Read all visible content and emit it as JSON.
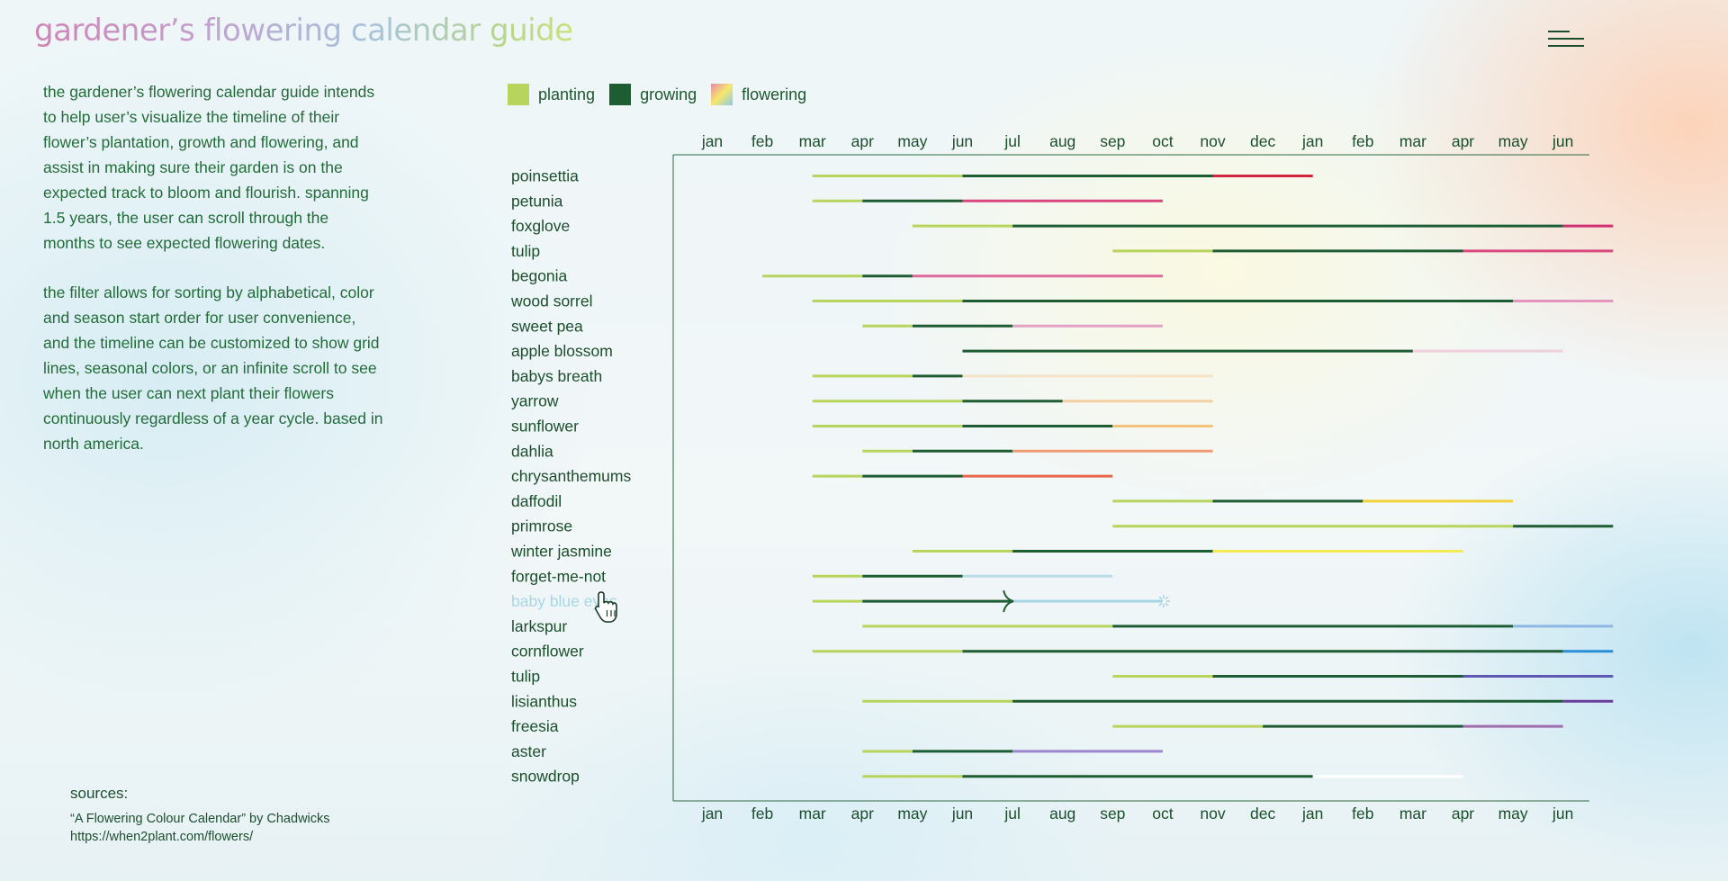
{
  "header": {
    "title": "gardener’s flowering calendar guide",
    "menu_icon": "menu-icon"
  },
  "description": {
    "paragraph1": "the gardener’s flowering calendar guide intends to help user’s visualize the timeline of their flower’s plantation, growth and flowering, and assist in making sure their garden is on the expected track to bloom and flourish. spanning 1.5 years, the user can scroll through the months to see expected flowering dates.",
    "paragraph2_text": "the filter allows for sorting by alphabetical, color and season start order for user convenience, and the timeline can be customized to show grid lines, seasonal colors, or an infinite scroll to see when the user can next plant their flowers continuously regardless of a year cycle.",
    "paragraph2_emphasis": "based in north america."
  },
  "legend": [
    {
      "label": "planting",
      "color": "#b7d45c"
    },
    {
      "label": "growing",
      "color": "#1e5c34"
    },
    {
      "label": "flowering",
      "gradient": [
        "#e48ab0",
        "#f6e86a",
        "#8ec9ea"
      ]
    }
  ],
  "colors": {
    "planting": "#b7d45c",
    "growing": "#1e5c34",
    "axis": "#2b6a3f",
    "text": "#1c4e2d",
    "highlight": "#a9d6e3"
  },
  "months": [
    "jan",
    "feb",
    "mar",
    "apr",
    "may",
    "jun",
    "jul",
    "aug",
    "sep",
    "oct",
    "nov",
    "dec",
    "jan",
    "feb",
    "mar",
    "apr",
    "may",
    "jun"
  ],
  "flowers": [
    {
      "name": "poinsettia",
      "plant": [
        3,
        6
      ],
      "grow": [
        6,
        11
      ],
      "flower": [
        11,
        13
      ],
      "color": "#d2243f"
    },
    {
      "name": "petunia",
      "plant": [
        3,
        4
      ],
      "grow": [
        4,
        6
      ],
      "flower": [
        6,
        10
      ],
      "color": "#d9477f"
    },
    {
      "name": "foxglove",
      "plant": [
        5,
        7
      ],
      "grow": [
        7,
        18
      ],
      "flower": [
        18,
        19
      ],
      "color": "#cf2f73"
    },
    {
      "name": "tulip",
      "plant": [
        9,
        11
      ],
      "grow": [
        11,
        16
      ],
      "flower": [
        16,
        19
      ],
      "color": "#d9487e"
    },
    {
      "name": "begonia",
      "plant": [
        2,
        4
      ],
      "grow": [
        4,
        5
      ],
      "flower": [
        5,
        10
      ],
      "color": "#e06a9c"
    },
    {
      "name": "wood sorrel",
      "plant": [
        3,
        6
      ],
      "grow": [
        6,
        17
      ],
      "flower": [
        17,
        19
      ],
      "color": "#e495bd"
    },
    {
      "name": "sweet pea",
      "plant": [
        4,
        5
      ],
      "grow": [
        5,
        7
      ],
      "flower": [
        7,
        10
      ],
      "color": "#e2a0c4"
    },
    {
      "name": "apple blossom",
      "plant": null,
      "grow": [
        6,
        15
      ],
      "flower": [
        15,
        18
      ],
      "color": "#f0cfdc"
    },
    {
      "name": "babys breath",
      "plant": [
        3,
        5
      ],
      "grow": [
        5,
        6
      ],
      "flower": [
        6,
        11
      ],
      "color": "#f6e2c6"
    },
    {
      "name": "yarrow",
      "plant": [
        3,
        6
      ],
      "grow": [
        6,
        8
      ],
      "flower": [
        8,
        11
      ],
      "color": "#f3cfa3"
    },
    {
      "name": "sunflower",
      "plant": [
        3,
        6
      ],
      "grow": [
        6,
        9
      ],
      "flower": [
        9,
        11
      ],
      "color": "#f4c37a"
    },
    {
      "name": "dahlia",
      "plant": [
        4,
        5
      ],
      "grow": [
        5,
        7
      ],
      "flower": [
        7,
        11
      ],
      "color": "#ef9c72"
    },
    {
      "name": "chrysanthemums",
      "plant": [
        3,
        4
      ],
      "grow": [
        4,
        6
      ],
      "flower": [
        6,
        9
      ],
      "color": "#e8674a"
    },
    {
      "name": "daffodil",
      "plant": [
        9,
        11
      ],
      "grow": [
        11,
        14
      ],
      "flower": [
        14,
        17
      ],
      "color": "#f2d23a"
    },
    {
      "name": "primrose",
      "plant": [
        9,
        17
      ],
      "grow": [
        17,
        19
      ],
      "flower": null,
      "color": "#f0e24a"
    },
    {
      "name": "winter jasmine",
      "plant": [
        5,
        7
      ],
      "grow": [
        7,
        11
      ],
      "flower": [
        11,
        16
      ],
      "color": "#f3ea55"
    },
    {
      "name": "forget-me-not",
      "plant": [
        3,
        4
      ],
      "grow": [
        4,
        6
      ],
      "flower": [
        6,
        9
      ],
      "color": "#bcdbe8"
    },
    {
      "name": "baby blue eyes",
      "plant": [
        3,
        4
      ],
      "grow": [
        4,
        7
      ],
      "flower": [
        7,
        10
      ],
      "color": "#a9d6e3",
      "highlighted": true
    },
    {
      "name": "larkspur",
      "plant": [
        4,
        9
      ],
      "grow": [
        9,
        17
      ],
      "flower": [
        17,
        19
      ],
      "color": "#8db6e2"
    },
    {
      "name": "cornflower",
      "plant": [
        3,
        6
      ],
      "grow": [
        6,
        18
      ],
      "flower": [
        18,
        19
      ],
      "color": "#2d8ed8"
    },
    {
      "name": "tulip",
      "plant": [
        9,
        11
      ],
      "grow": [
        11,
        16
      ],
      "flower": [
        16,
        19
      ],
      "color": "#5d58b2"
    },
    {
      "name": "lisianthus",
      "plant": [
        4,
        7
      ],
      "grow": [
        7,
        18
      ],
      "flower": [
        18,
        19
      ],
      "color": "#6a3c9e"
    },
    {
      "name": "freesia",
      "plant": [
        9,
        12
      ],
      "grow": [
        12,
        16
      ],
      "flower": [
        16,
        18
      ],
      "color": "#a26cb0"
    },
    {
      "name": "aster",
      "plant": [
        4,
        5
      ],
      "grow": [
        5,
        7
      ],
      "flower": [
        7,
        10
      ],
      "color": "#9a86cc"
    },
    {
      "name": "snowdrop",
      "plant": [
        4,
        6
      ],
      "grow": [
        6,
        13
      ],
      "flower": [
        13,
        16
      ],
      "color": "#ffffff"
    }
  ],
  "sources": {
    "heading": "sources:",
    "line1": "“A Flowering Colour Calendar” by Chadwicks",
    "line2": "https://when2plant.com/flowers/"
  }
}
